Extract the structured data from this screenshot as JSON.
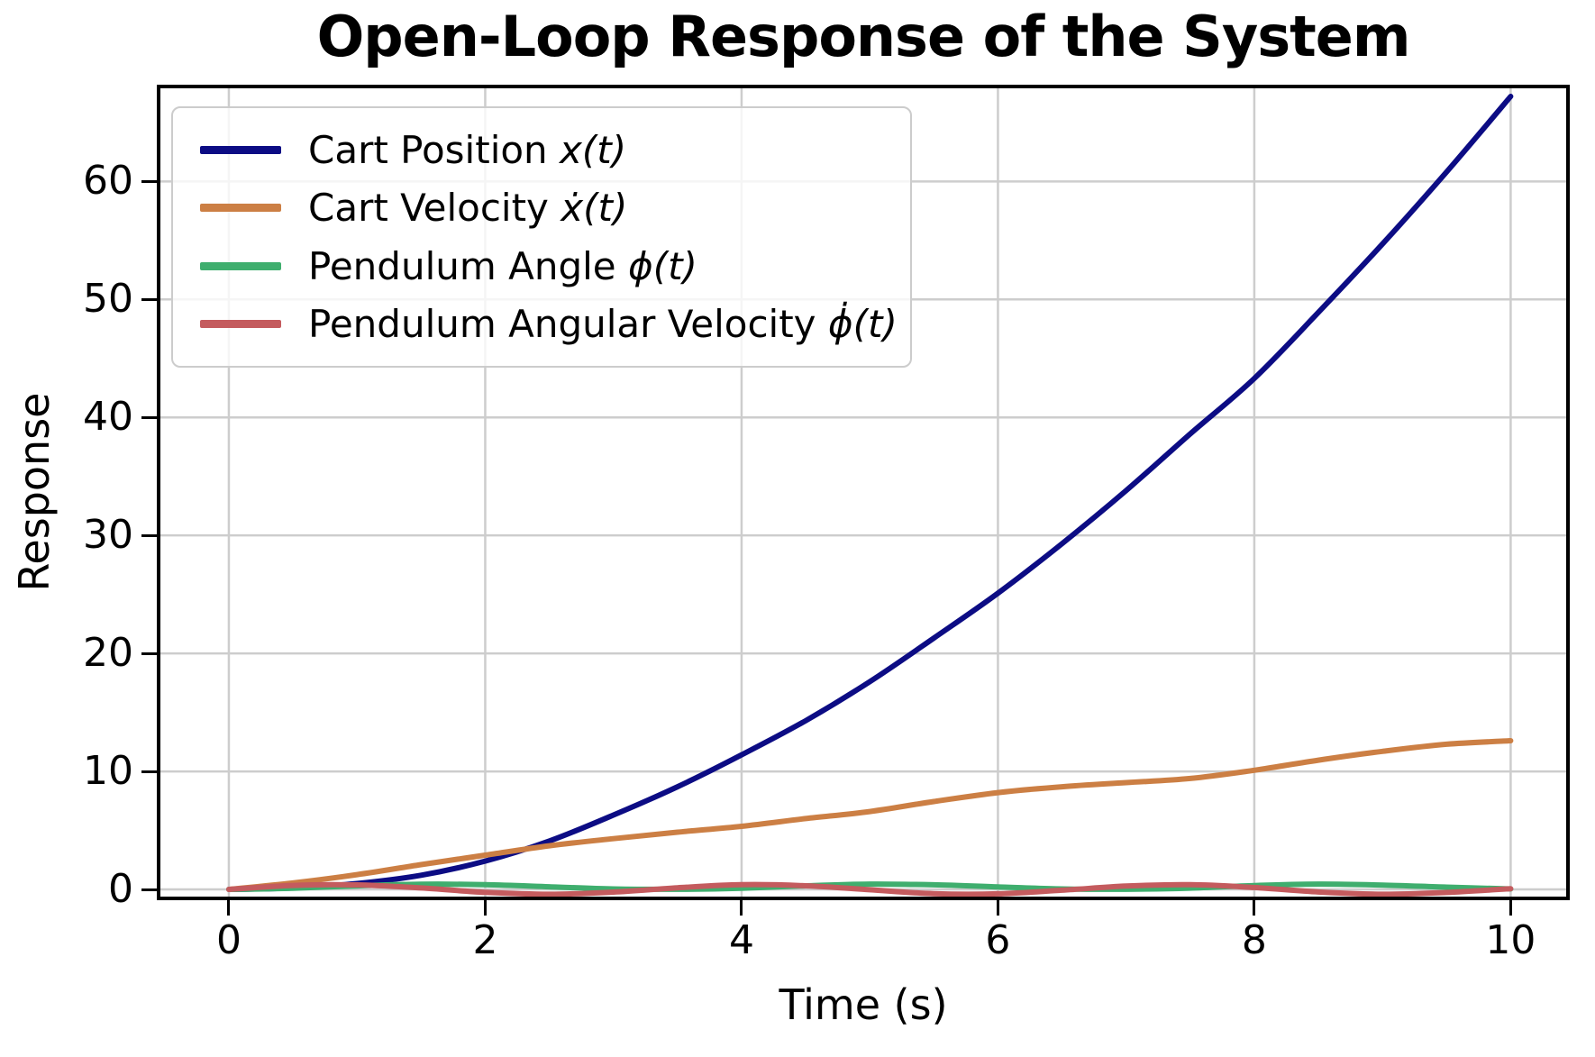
{
  "chart_data": {
    "type": "line",
    "title": "Open-Loop Response of the System",
    "xlabel": "Time (s)",
    "ylabel": "Response",
    "xlim": [
      -0.534,
      10.433
    ],
    "ylim": [
      -0.61,
      67.89
    ],
    "xticks": [
      0,
      2,
      4,
      6,
      8,
      10
    ],
    "yticks": [
      0,
      10,
      20,
      30,
      40,
      50,
      60
    ],
    "grid": true,
    "legend_position": "upper left",
    "x": [
      0,
      0.5,
      1,
      1.5,
      2,
      2.5,
      3,
      3.5,
      4,
      4.5,
      5,
      5.5,
      6,
      6.5,
      7,
      7.5,
      8,
      8.5,
      9,
      9.5,
      10
    ],
    "series": [
      {
        "name": "Cart Position",
        "label_text": "Cart Position ",
        "label_math": "x(t)",
        "color": "#0c0c84",
        "values": [
          0,
          0.12,
          0.5,
          1.2,
          2.4,
          4.1,
          6.3,
          8.7,
          11.4,
          14.3,
          17.6,
          21.3,
          25.1,
          29.3,
          33.8,
          38.6,
          43.3,
          48.9,
          54.7,
          60.8,
          67.2
        ]
      },
      {
        "name": "Cart Velocity",
        "label_text": "Cart Velocity ",
        "label_math": "ẋ(t)",
        "color": "#cc7f44",
        "values": [
          0,
          0.55,
          1.25,
          2.1,
          2.9,
          3.7,
          4.3,
          4.85,
          5.35,
          6.0,
          6.6,
          7.45,
          8.2,
          8.7,
          9.05,
          9.4,
          10.1,
          10.95,
          11.7,
          12.3,
          12.6
        ]
      },
      {
        "name": "Pendulum Angle",
        "label_text": "Pendulum Angle ",
        "label_math": "ϕ(t)",
        "color": "#3fae6e",
        "values": [
          0,
          0.1,
          0.3,
          0.44,
          0.4,
          0.22,
          0.04,
          0.01,
          0.1,
          0.31,
          0.45,
          0.39,
          0.21,
          0.04,
          0.01,
          0.11,
          0.33,
          0.45,
          0.37,
          0.19,
          0.04
        ]
      },
      {
        "name": "Pendulum Angular Velocity",
        "label_text": "Pendulum Angular Velocity ",
        "label_math": "ϕ̇(t)",
        "color": "#c45b5e",
        "values": [
          0,
          0.34,
          0.38,
          0.12,
          -0.25,
          -0.41,
          -0.23,
          0.14,
          0.4,
          0.31,
          -0.03,
          -0.36,
          -0.37,
          -0.07,
          0.28,
          0.4,
          0.16,
          -0.22,
          -0.41,
          -0.26,
          0.06
        ]
      }
    ],
    "style": {
      "background": "#ffffff",
      "grid_color": "#cdcdcd",
      "spine_color": "#000000",
      "tick_color": "#000000",
      "legend_border_color": "#cccccc",
      "line_width": 6
    }
  }
}
